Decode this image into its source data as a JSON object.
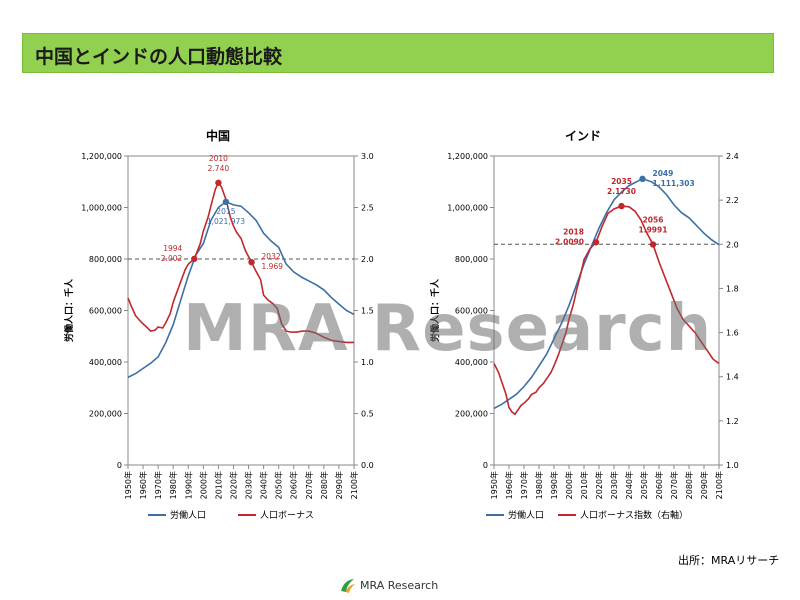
{
  "page": {
    "title": "中国とインドの人口動態比較",
    "source": "出所：MRAリサーチ",
    "watermark": "MRA Research",
    "logo_text": "MRA Research"
  },
  "colors": {
    "labor": "#3a6fa8",
    "bonus": "#c0282d",
    "title_bar": "#92d050"
  },
  "chart_data": [
    {
      "id": "china",
      "type": "line",
      "title": "中国",
      "ylabel": "労働人口：千人",
      "ylim": [
        0,
        1200000
      ],
      "yticks": [
        "0",
        "200,000",
        "400,000",
        "600,000",
        "800,000",
        "1,000,000",
        "1,200,000"
      ],
      "y2lim": [
        0.0,
        3.0
      ],
      "y2ticks": [
        "0.0",
        "0.5",
        "1.0",
        "1.5",
        "2.0",
        "2.5",
        "3.0"
      ],
      "xlim": [
        1950,
        2100
      ],
      "xticks": [
        "1950年",
        "1960年",
        "1970年",
        "1980年",
        "1990年",
        "2000年",
        "2010年",
        "2020年",
        "2030年",
        "2040年",
        "2050年",
        "2060年",
        "2070年",
        "2080年",
        "2090年",
        "2100年"
      ],
      "reference_y2": 2.0,
      "legend": [
        "労働人口",
        "人口ボーナス"
      ],
      "series": [
        {
          "name": "労働人口",
          "axis": "left",
          "points": [
            [
              1950,
              340000
            ],
            [
              1955,
              355000
            ],
            [
              1960,
              375000
            ],
            [
              1965,
              395000
            ],
            [
              1970,
              420000
            ],
            [
              1975,
              475000
            ],
            [
              1980,
              545000
            ],
            [
              1985,
              640000
            ],
            [
              1990,
              735000
            ],
            [
              1995,
              815000
            ],
            [
              2000,
              860000
            ],
            [
              2005,
              950000
            ],
            [
              2010,
              1000000
            ],
            [
              2015,
              1021973
            ],
            [
              2020,
              1010000
            ],
            [
              2025,
              1005000
            ],
            [
              2030,
              980000
            ],
            [
              2035,
              950000
            ],
            [
              2040,
              900000
            ],
            [
              2045,
              870000
            ],
            [
              2050,
              845000
            ],
            [
              2055,
              780000
            ],
            [
              2060,
              750000
            ],
            [
              2065,
              730000
            ],
            [
              2070,
              715000
            ],
            [
              2075,
              700000
            ],
            [
              2080,
              680000
            ],
            [
              2085,
              650000
            ],
            [
              2090,
              625000
            ],
            [
              2095,
              600000
            ],
            [
              2100,
              585000
            ]
          ]
        },
        {
          "name": "人口ボーナス",
          "axis": "right",
          "points": [
            [
              1950,
              1.62
            ],
            [
              1952,
              1.55
            ],
            [
              1955,
              1.45
            ],
            [
              1958,
              1.4
            ],
            [
              1960,
              1.37
            ],
            [
              1963,
              1.33
            ],
            [
              1965,
              1.3
            ],
            [
              1968,
              1.31
            ],
            [
              1970,
              1.34
            ],
            [
              1973,
              1.33
            ],
            [
              1975,
              1.38
            ],
            [
              1978,
              1.47
            ],
            [
              1980,
              1.58
            ],
            [
              1983,
              1.7
            ],
            [
              1985,
              1.78
            ],
            [
              1988,
              1.9
            ],
            [
              1990,
              1.95
            ],
            [
              1994,
              2.002
            ],
            [
              1998,
              2.15
            ],
            [
              2000,
              2.27
            ],
            [
              2003,
              2.4
            ],
            [
              2006,
              2.57
            ],
            [
              2008,
              2.68
            ],
            [
              2010,
              2.74
            ],
            [
              2012,
              2.7
            ],
            [
              2015,
              2.58
            ],
            [
              2018,
              2.4
            ],
            [
              2020,
              2.32
            ],
            [
              2022,
              2.26
            ],
            [
              2025,
              2.2
            ],
            [
              2028,
              2.08
            ],
            [
              2032,
              1.969
            ],
            [
              2035,
              1.88
            ],
            [
              2038,
              1.8
            ],
            [
              2040,
              1.65
            ],
            [
              2043,
              1.6
            ],
            [
              2046,
              1.57
            ],
            [
              2049,
              1.52
            ],
            [
              2052,
              1.37
            ],
            [
              2055,
              1.3
            ],
            [
              2058,
              1.29
            ],
            [
              2062,
              1.29
            ],
            [
              2066,
              1.3
            ],
            [
              2070,
              1.3
            ],
            [
              2075,
              1.28
            ],
            [
              2080,
              1.24
            ],
            [
              2085,
              1.21
            ],
            [
              2090,
              1.2
            ],
            [
              2095,
              1.19
            ],
            [
              2100,
              1.19
            ]
          ]
        }
      ],
      "annotations": [
        {
          "series": "人口ボーナス",
          "x": 2010,
          "y": 2.74,
          "label_year": "2010",
          "label_value": "2.740",
          "pos": "above"
        },
        {
          "series": "労働人口",
          "x": 2015,
          "y": 1021973,
          "label_year": "2015",
          "label_value": "1,021,973",
          "pos": "below"
        },
        {
          "series": "人口ボーナス",
          "x": 1994,
          "y": 2.002,
          "label_year": "1994",
          "label_value": "2.002",
          "pos": "left"
        },
        {
          "series": "人口ボーナス",
          "x": 2032,
          "y": 1.969,
          "label_year": "2032",
          "label_value": "1.969",
          "pos": "right"
        }
      ]
    },
    {
      "id": "india",
      "type": "line",
      "title": "インド",
      "ylabel": "労働人口：千人",
      "ylim": [
        0,
        1200000
      ],
      "yticks": [
        "0",
        "200,000",
        "400,000",
        "600,000",
        "800,000",
        "1,000,000",
        "1,200,000"
      ],
      "y2lim": [
        1.0,
        2.4
      ],
      "y2ticks": [
        "1.0",
        "1.2",
        "1.4",
        "1.6",
        "1.8",
        "2.0",
        "2.2",
        "2.4"
      ],
      "xlim": [
        1950,
        2100
      ],
      "xticks": [
        "1950年",
        "1960年",
        "1970年",
        "1980年",
        "1990年",
        "2000年",
        "2010年",
        "2020年",
        "2030年",
        "2040年",
        "2050年",
        "2060年",
        "2070年",
        "2080年",
        "2090年",
        "2100年"
      ],
      "reference_y2": 2.0,
      "legend": [
        "労働人口",
        "人口ボーナス指数（右軸）"
      ],
      "series": [
        {
          "name": "労働人口",
          "axis": "left",
          "points": [
            [
              1950,
              220000
            ],
            [
              1955,
              235000
            ],
            [
              1960,
              255000
            ],
            [
              1965,
              275000
            ],
            [
              1970,
              305000
            ],
            [
              1975,
              340000
            ],
            [
              1980,
              385000
            ],
            [
              1985,
              430000
            ],
            [
              1990,
              490000
            ],
            [
              1995,
              550000
            ],
            [
              2000,
              620000
            ],
            [
              2005,
              700000
            ],
            [
              2010,
              780000
            ],
            [
              2015,
              850000
            ],
            [
              2020,
              920000
            ],
            [
              2025,
              980000
            ],
            [
              2030,
              1030000
            ],
            [
              2035,
              1060000
            ],
            [
              2040,
              1085000
            ],
            [
              2045,
              1100000
            ],
            [
              2049,
              1111303
            ],
            [
              2055,
              1100000
            ],
            [
              2060,
              1080000
            ],
            [
              2065,
              1050000
            ],
            [
              2070,
              1010000
            ],
            [
              2075,
              980000
            ],
            [
              2080,
              960000
            ],
            [
              2085,
              930000
            ],
            [
              2090,
              900000
            ],
            [
              2095,
              875000
            ],
            [
              2100,
              855000
            ]
          ]
        },
        {
          "name": "人口ボーナス指数（右軸）",
          "axis": "right",
          "points": [
            [
              1950,
              1.46
            ],
            [
              1953,
              1.42
            ],
            [
              1955,
              1.38
            ],
            [
              1958,
              1.32
            ],
            [
              1960,
              1.26
            ],
            [
              1962,
              1.24
            ],
            [
              1964,
              1.23
            ],
            [
              1966,
              1.25
            ],
            [
              1968,
              1.27
            ],
            [
              1970,
              1.28
            ],
            [
              1973,
              1.3
            ],
            [
              1975,
              1.32
            ],
            [
              1978,
              1.33
            ],
            [
              1980,
              1.35
            ],
            [
              1983,
              1.37
            ],
            [
              1985,
              1.39
            ],
            [
              1988,
              1.42
            ],
            [
              1990,
              1.45
            ],
            [
              1993,
              1.5
            ],
            [
              1995,
              1.54
            ],
            [
              1998,
              1.6
            ],
            [
              2000,
              1.66
            ],
            [
              2003,
              1.73
            ],
            [
              2005,
              1.79
            ],
            [
              2008,
              1.87
            ],
            [
              2010,
              1.93
            ],
            [
              2014,
              1.98
            ],
            [
              2018,
              2.009
            ],
            [
              2022,
              2.08
            ],
            [
              2026,
              2.14
            ],
            [
              2030,
              2.16
            ],
            [
              2035,
              2.173
            ],
            [
              2040,
              2.17
            ],
            [
              2044,
              2.15
            ],
            [
              2048,
              2.11
            ],
            [
              2052,
              2.05
            ],
            [
              2056,
              1.9991
            ],
            [
              2060,
              1.92
            ],
            [
              2064,
              1.85
            ],
            [
              2068,
              1.78
            ],
            [
              2072,
              1.71
            ],
            [
              2076,
              1.66
            ],
            [
              2080,
              1.63
            ],
            [
              2084,
              1.6
            ],
            [
              2088,
              1.56
            ],
            [
              2092,
              1.52
            ],
            [
              2096,
              1.48
            ],
            [
              2100,
              1.46
            ]
          ]
        }
      ],
      "annotations": [
        {
          "series": "労働人口",
          "x": 2049,
          "y": 1111303,
          "label_year": "2049",
          "label_value": "1,111,303",
          "pos": "right"
        },
        {
          "series": "人口ボーナス指数（右軸）",
          "x": 2035,
          "y": 2.173,
          "label_year": "2035",
          "label_value": "2.1730",
          "pos": "above"
        },
        {
          "series": "人口ボーナス指数（右軸）",
          "x": 2018,
          "y": 2.009,
          "label_year": "2018",
          "label_value": "2.0090",
          "pos": "left"
        },
        {
          "series": "人口ボーナス指数（右軸）",
          "x": 2056,
          "y": 1.9991,
          "label_year": "2056",
          "label_value": "1.9991",
          "pos": "above"
        }
      ]
    }
  ]
}
